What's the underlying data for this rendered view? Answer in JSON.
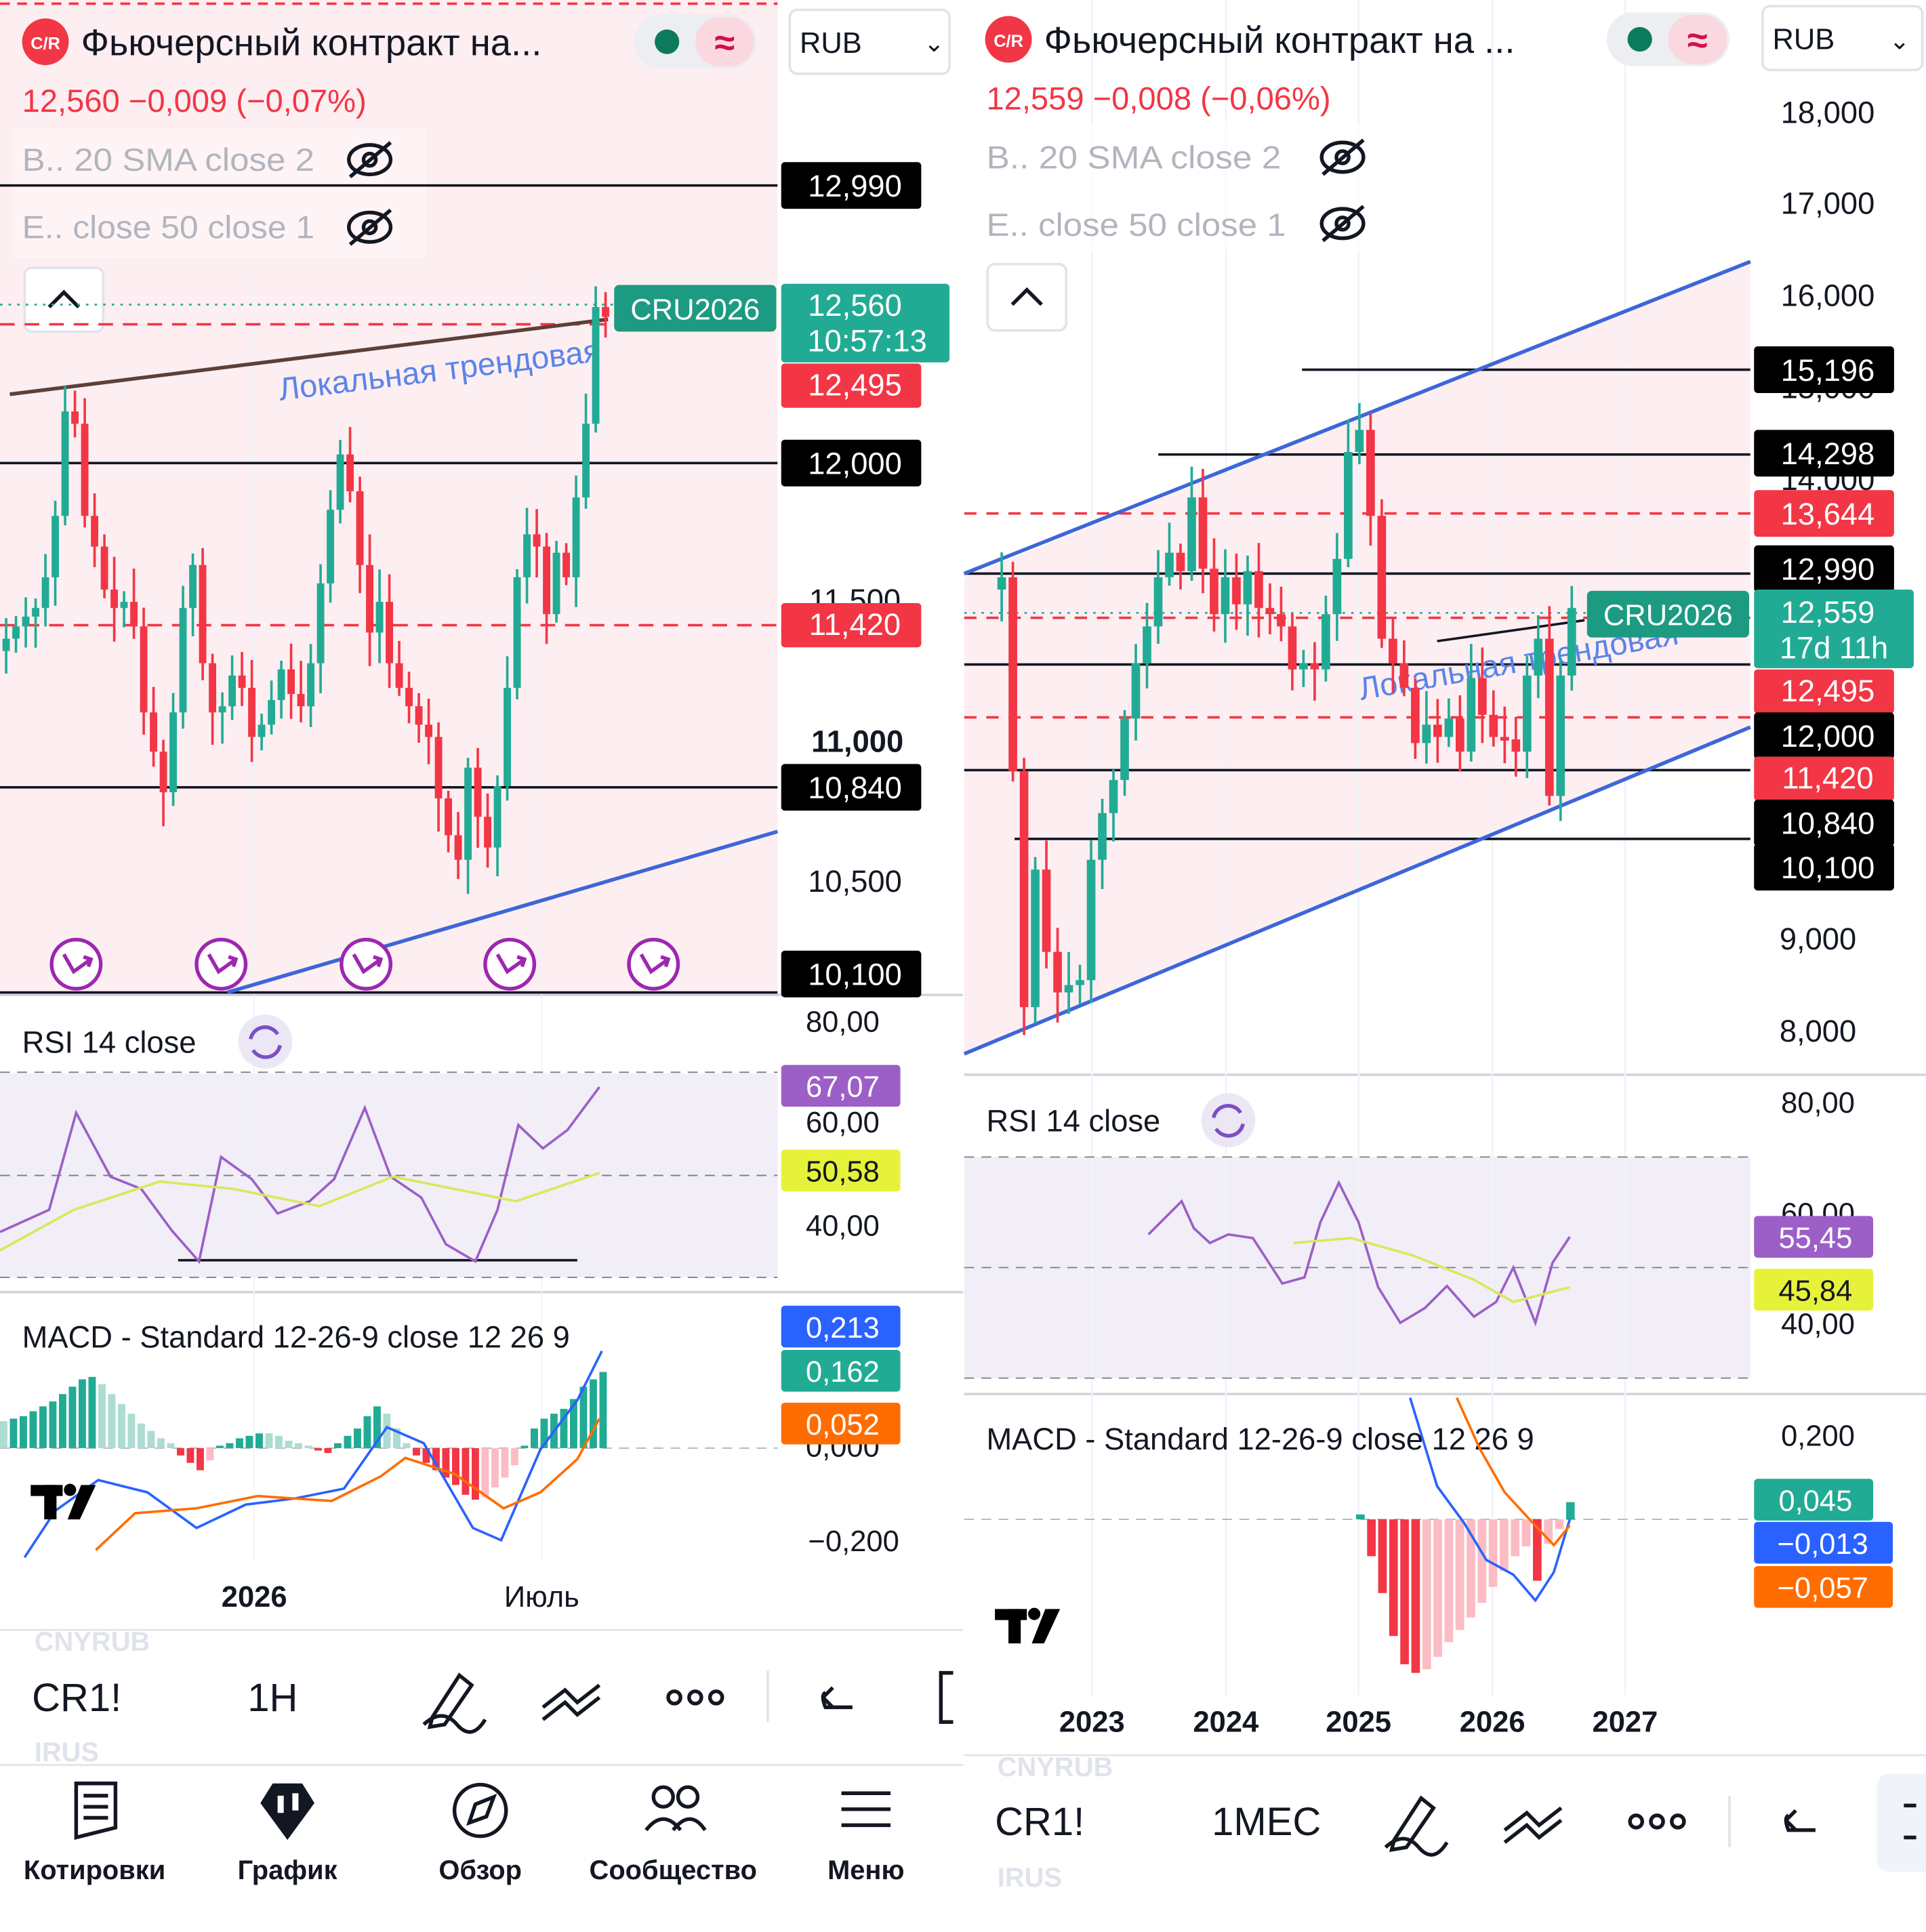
{
  "left_panel": {
    "header": {
      "logo_text": "C/R",
      "title": "Фьючерсный контракт на...",
      "currency": "RUB"
    },
    "price_line": "12,560  −0,009 (−0,07%)",
    "indicators": [
      {
        "label": "B.. 20 SMA close 2"
      },
      {
        "label": "E.. close 50 close 1"
      }
    ],
    "price_axis": [
      "12,990",
      "12,000",
      "11,500",
      "11,000",
      "10,500",
      "10,100"
    ],
    "price_badges": [
      {
        "value": "12,560",
        "sub": "10:57:13",
        "color": "#22ab94"
      },
      {
        "value": "12,495",
        "color": "#f23645"
      },
      {
        "value": "11,420",
        "color": "#f23645"
      },
      {
        "value": "10,840",
        "color": "#000000"
      }
    ],
    "symbol_tag": "CRU2026",
    "trend_label": "Локальная трендовая",
    "rsi": {
      "title": "RSI 14 close",
      "axis": [
        "80,00",
        "60,00",
        "40,00"
      ],
      "values": [
        "67,07",
        "50,58"
      ]
    },
    "macd": {
      "title": "MACD - Standard 12-26-9 close 12 26 9",
      "axis": [
        "0,000",
        "−0,200"
      ],
      "values": [
        "0,213",
        "0,162",
        "0,052"
      ]
    },
    "time_axis": [
      "2026",
      "Июль"
    ],
    "toolbar": {
      "symbol": "CR1!",
      "interval": "1H",
      "sub_top": "CNYRUB",
      "sub_bottom": "IRUS"
    }
  },
  "right_panel": {
    "header": {
      "logo_text": "C/R",
      "title": "Фьючерсный контракт на ...",
      "currency": "RUB"
    },
    "price_line": "12,559  −0,008 (−0,06%)",
    "indicators": [
      {
        "label": "B.. 20 SMA close 2"
      },
      {
        "label": "E.. close 50 close 1"
      }
    ],
    "price_axis": [
      "18,000",
      "17,000",
      "16,000",
      "15,000",
      "14,000",
      "9,000",
      "8,000"
    ],
    "price_badges": [
      {
        "value": "15,196",
        "color": "#000000"
      },
      {
        "value": "14,298",
        "color": "#000000"
      },
      {
        "value": "13,644",
        "color": "#f23645"
      },
      {
        "value": "12,990",
        "color": "#000000"
      },
      {
        "value": "12,559",
        "sub": "17d 11h",
        "color": "#22ab94"
      },
      {
        "value": "12,495",
        "color": "#f23645"
      },
      {
        "value": "12,000",
        "color": "#000000"
      },
      {
        "value": "11,420",
        "color": "#f23645"
      },
      {
        "value": "10,840",
        "color": "#000000"
      },
      {
        "value": "10,100",
        "color": "#000000"
      }
    ],
    "symbol_tag": "CRU2026",
    "trend_label": "Локальная трендовая",
    "rsi": {
      "title": "RSI 14 close",
      "axis": [
        "80,00",
        "60,00",
        "40,00"
      ],
      "values": [
        "55,45",
        "45,84"
      ]
    },
    "macd": {
      "title": "MACD - Standard 12-26-9 close 12 26 9",
      "axis": [
        "0,200"
      ],
      "values": [
        "0,045",
        "−0,013",
        "−0,057"
      ]
    },
    "time_axis": [
      "2023",
      "2024",
      "2025",
      "2026",
      "2027"
    ],
    "toolbar": {
      "symbol": "CR1!",
      "interval": "1МЕС",
      "sub_top": "CNYRUB",
      "sub_bottom": "IRUS"
    }
  },
  "bottom_nav": [
    {
      "label": "Котировки",
      "icon": "quotes-icon"
    },
    {
      "label": "График",
      "icon": "chart-icon"
    },
    {
      "label": "Обзор",
      "icon": "compass-icon"
    },
    {
      "label": "Сообщество",
      "icon": "community-icon"
    },
    {
      "label": "Меню",
      "icon": "menu-icon"
    }
  ],
  "colors": {
    "up": "#22ab94",
    "down": "#f23645",
    "rsi": "#9c5fc7",
    "signal": "#d9e85a",
    "macd": "#2962ff",
    "macd_signal": "#ff6d00",
    "trend": "#3d66d8",
    "tag": "#1d9a82"
  }
}
